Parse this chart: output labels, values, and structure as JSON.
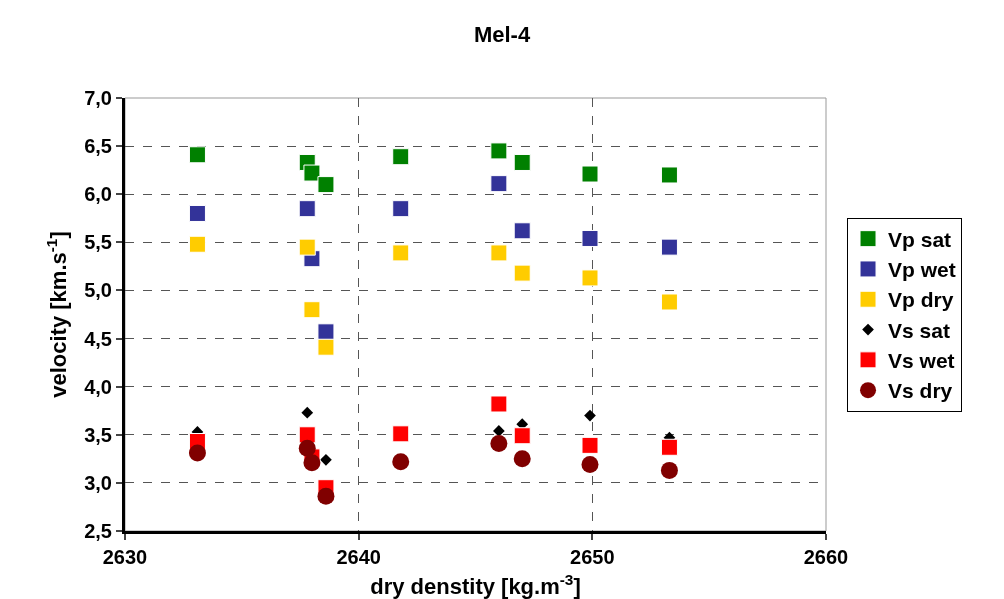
{
  "chart_data": {
    "type": "scatter",
    "title": "Mel-4",
    "xlabel": "dry denstity [kg.m$^{-3}$]",
    "ylabel": "velocity [km.s$^{-1}$]",
    "x": [
      2633.1,
      2637.8,
      2638.0,
      2638.6,
      2641.8,
      2646.0,
      2647.0,
      2649.9,
      2653.3
    ],
    "series": [
      {
        "name": "Vp sat",
        "color": "#008000",
        "marker": "square",
        "values": [
          6.41,
          6.33,
          6.22,
          6.1,
          6.39,
          6.45,
          6.33,
          6.21,
          6.2
        ]
      },
      {
        "name": "Vp wet",
        "color": "#333399",
        "marker": "square",
        "values": [
          5.8,
          5.85,
          5.33,
          4.57,
          5.85,
          6.11,
          5.62,
          5.54,
          5.45
        ]
      },
      {
        "name": "Vp dry",
        "color": "#ffcc00",
        "marker": "square",
        "values": [
          5.48,
          5.45,
          4.8,
          4.41,
          5.39,
          5.39,
          5.18,
          5.13,
          4.88
        ]
      },
      {
        "name": "Vs sat",
        "color": "#000000",
        "marker": "diamond",
        "values": [
          3.53,
          3.73,
          null,
          3.24,
          null,
          3.54,
          3.61,
          3.7,
          3.47
        ]
      },
      {
        "name": "Vs wet",
        "color": "#ff0000",
        "marker": "square",
        "values": [
          3.43,
          3.5,
          3.27,
          2.95,
          3.51,
          3.82,
          3.49,
          3.39,
          3.37
        ]
      },
      {
        "name": "Vs dry",
        "color": "#800000",
        "marker": "circle",
        "values": [
          3.31,
          3.36,
          3.21,
          2.86,
          3.22,
          3.41,
          3.25,
          3.19,
          3.13
        ]
      }
    ],
    "xlim": [
      2630,
      2660
    ],
    "xticks": [
      2630,
      2640,
      2650,
      2660
    ],
    "ylim": [
      2.5,
      7.0
    ],
    "yticks": [
      {
        "value": 2.5,
        "label": "2,5"
      },
      {
        "value": 3.0,
        "label": "3,0"
      },
      {
        "value": 3.5,
        "label": "3,5"
      },
      {
        "value": 4.0,
        "label": "4,0"
      },
      {
        "value": 4.5,
        "label": "4,5"
      },
      {
        "value": 5.0,
        "label": "5,0"
      },
      {
        "value": 5.5,
        "label": "5,5"
      },
      {
        "value": 6.0,
        "label": "6,0"
      },
      {
        "value": 6.5,
        "label": "6,5"
      },
      {
        "value": 7.0,
        "label": "7,0"
      }
    ],
    "grid": true,
    "legend": "right",
    "line_style": "dashed"
  }
}
